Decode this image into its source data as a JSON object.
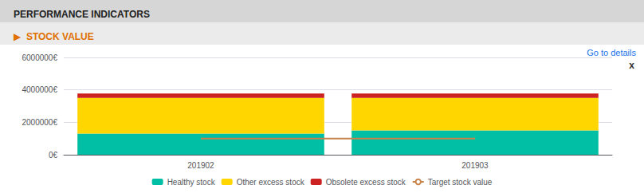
{
  "chart_data": {
    "type": "bar",
    "title": "PERFORMANCE INDICATORS",
    "subtitle": "▶  STOCK VALUE",
    "annotations": [
      "Go to details",
      "x"
    ],
    "categories": [
      "201902",
      "201903"
    ],
    "series": [
      {
        "name": "Healthy stock",
        "color": "#00BFA5",
        "values": [
          1300000,
          1500000
        ]
      },
      {
        "name": "Other excess stock",
        "color": "#FFD600",
        "values": [
          2200000,
          2000000
        ]
      },
      {
        "name": "Obsolete excess stock",
        "color": "#CC2222",
        "values": [
          280000,
          280000
        ]
      },
      {
        "name": "Target stock value",
        "type": "line",
        "color": "#C8834A",
        "values": [
          1000000,
          1000000
        ]
      }
    ],
    "stacked": true,
    "ylim": [
      0,
      6000000
    ],
    "yticks": [
      {
        "value": 0,
        "label": "0€"
      },
      {
        "value": 2000000,
        "label": "2000000€"
      },
      {
        "value": 4000000,
        "label": "4000000€"
      },
      {
        "value": 6000000,
        "label": "6000000€"
      }
    ],
    "grid": true,
    "legend": "bottom"
  }
}
